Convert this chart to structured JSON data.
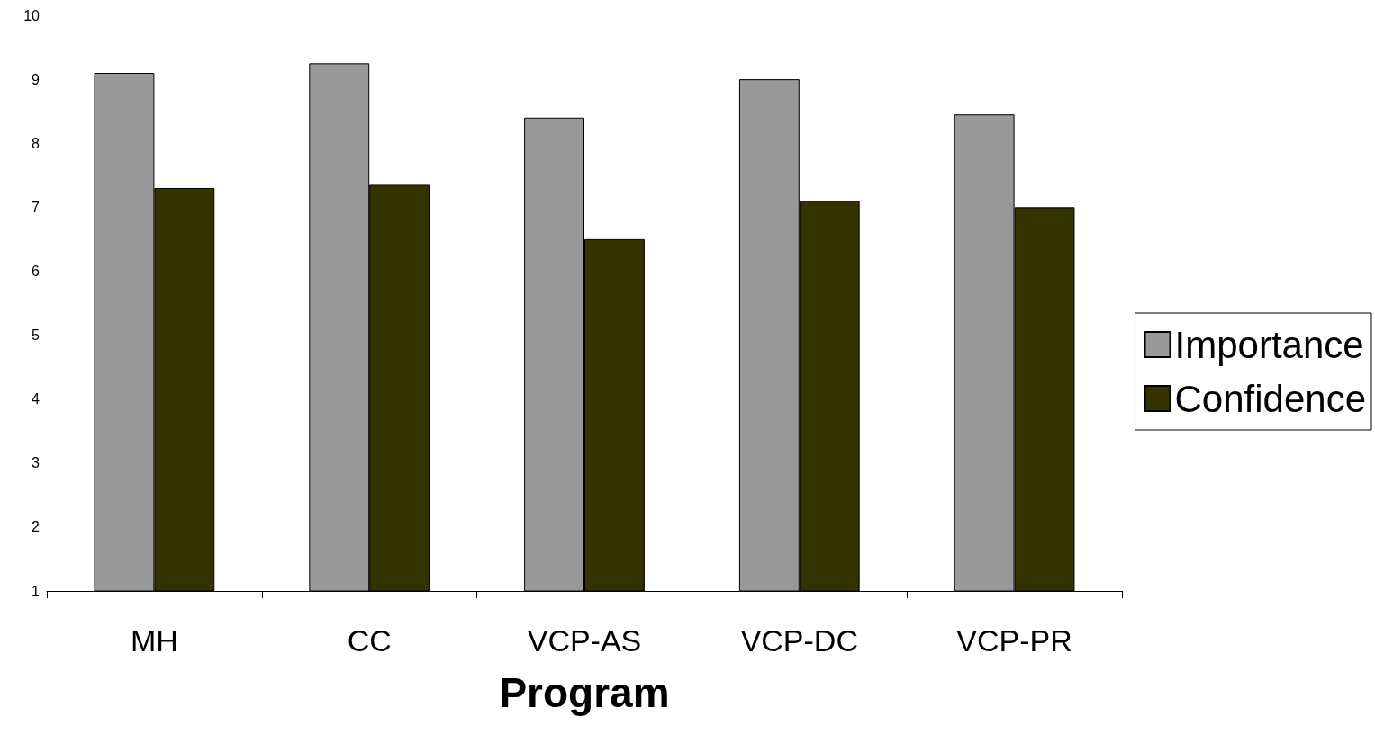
{
  "chart_data": {
    "type": "bar",
    "xlabel": "Program",
    "categories": [
      "MH",
      "CC",
      "VCP-AS",
      "VCP-DC",
      "VCP-PR"
    ],
    "series": [
      {
        "name": "Importance",
        "color": "#999999",
        "values": [
          9.1,
          9.25,
          8.4,
          9.0,
          8.45
        ]
      },
      {
        "name": "Confidence",
        "color": "#333300",
        "values": [
          7.3,
          7.35,
          6.5,
          7.1,
          7.0
        ]
      }
    ],
    "ylim": [
      1,
      10
    ],
    "yticks": [
      1,
      2,
      3,
      4,
      5,
      6,
      7,
      8,
      9,
      10
    ],
    "grid": false,
    "legend": "right"
  }
}
